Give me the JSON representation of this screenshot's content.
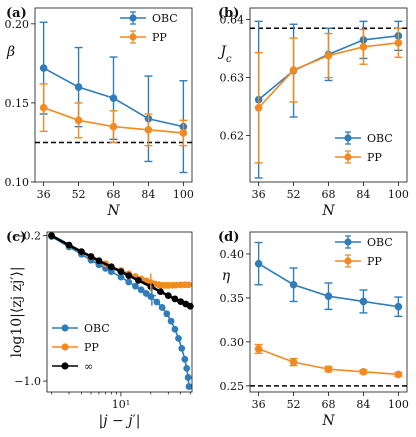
{
  "colors": {
    "obc": "#2f7dbb",
    "pp": "#f28a1f",
    "inf": "#000000",
    "ref": "#000000"
  },
  "chart_data": [
    {
      "panel": "(a)",
      "type": "line",
      "xlabel": "N",
      "ylabel": "β",
      "categories": [
        "36",
        "52",
        "68",
        "84",
        "100"
      ],
      "ylim": [
        0.1,
        0.21
      ],
      "yticks": [
        "0.10",
        "0.15",
        "0.20"
      ],
      "ytick_values": [
        0.1,
        0.15,
        0.2
      ],
      "reference_line": 0.125,
      "legend_position": "top-right",
      "series": [
        {
          "name": "OBC",
          "values": [
            0.172,
            0.16,
            0.153,
            0.14,
            0.135
          ],
          "err": [
            0.029,
            0.025,
            0.026,
            0.027,
            0.029
          ]
        },
        {
          "name": "PP",
          "values": [
            0.147,
            0.139,
            0.135,
            0.133,
            0.131
          ],
          "err": [
            0.015,
            0.011,
            0.01,
            0.01,
            0.008
          ]
        }
      ]
    },
    {
      "panel": "(b)",
      "type": "line",
      "xlabel": "N",
      "ylabel": "J_c",
      "categories": [
        "36",
        "52",
        "68",
        "84",
        "100"
      ],
      "ylim": [
        0.612,
        0.642
      ],
      "yticks": [
        "0.62",
        "0.63",
        "0.64"
      ],
      "ytick_values": [
        0.62,
        0.63,
        0.64
      ],
      "reference_line": 0.6385,
      "legend_position": "bottom-right",
      "series": [
        {
          "name": "OBC",
          "values": [
            0.6262,
            0.6312,
            0.634,
            0.6365,
            0.6372
          ],
          "err": [
            0.0135,
            0.008,
            0.0045,
            0.0032,
            0.0025
          ]
        },
        {
          "name": "PP",
          "values": [
            0.6248,
            0.6313,
            0.6338,
            0.6353,
            0.636
          ],
          "err": [
            0.0095,
            0.0055,
            0.0038,
            0.003,
            0.0025
          ]
        }
      ]
    },
    {
      "panel": "(c)",
      "type": "line",
      "xlabel": "|j − j′|",
      "ylabel": "log10|⟨zj zj′⟩|",
      "xscale": "log",
      "xlim": [
        1.8,
        52
      ],
      "xticks": [
        "10¹"
      ],
      "xtick_values": [
        10
      ],
      "ylim": [
        -1.06,
        -0.18
      ],
      "yticks": [
        "−0.2",
        "−1.0"
      ],
      "ytick_values": [
        -0.2,
        -1.0
      ],
      "legend_position": "bottom-left",
      "series": [
        {
          "name": "OBC",
          "x": [
            2,
            3,
            4,
            5,
            6,
            7,
            8,
            10,
            12,
            14,
            16,
            18,
            20,
            23,
            26,
            29,
            32,
            35,
            38,
            41,
            44,
            46,
            47.5,
            48.5
          ],
          "values": [
            -0.205,
            -0.262,
            -0.302,
            -0.335,
            -0.36,
            -0.38,
            -0.398,
            -0.428,
            -0.455,
            -0.478,
            -0.498,
            -0.518,
            -0.535,
            -0.565,
            -0.595,
            -0.63,
            -0.67,
            -0.715,
            -0.765,
            -0.82,
            -0.88,
            -0.93,
            -0.98,
            -1.03
          ]
        },
        {
          "name": "PP",
          "x": [
            2,
            3,
            4,
            5,
            6,
            7,
            8,
            10,
            12,
            14,
            16,
            18,
            20,
            22,
            24,
            26,
            28,
            30,
            33,
            36,
            40,
            44,
            48
          ],
          "values": [
            -0.2,
            -0.254,
            -0.29,
            -0.317,
            -0.338,
            -0.355,
            -0.37,
            -0.392,
            -0.41,
            -0.425,
            -0.438,
            -0.448,
            -0.458,
            -0.466,
            -0.47,
            -0.473,
            -0.474,
            -0.474,
            -0.473,
            -0.472,
            -0.471,
            -0.47,
            -0.47
          ]
        },
        {
          "name": "∞",
          "x": [
            2,
            3,
            4,
            5,
            6,
            8,
            10,
            12,
            15,
            20,
            25,
            30,
            35,
            40,
            45,
            50
          ],
          "values": [
            -0.2,
            -0.252,
            -0.288,
            -0.315,
            -0.338,
            -0.372,
            -0.398,
            -0.42,
            -0.446,
            -0.48,
            -0.508,
            -0.53,
            -0.548,
            -0.563,
            -0.576,
            -0.588
          ]
        }
      ]
    },
    {
      "panel": "(d)",
      "type": "line",
      "xlabel": "N",
      "ylabel": "η",
      "categories": [
        "36",
        "52",
        "68",
        "84",
        "100"
      ],
      "ylim": [
        0.243,
        0.425
      ],
      "yticks": [
        "0.25",
        "0.30",
        "0.35",
        "0.40"
      ],
      "ytick_values": [
        0.25,
        0.3,
        0.35,
        0.4
      ],
      "reference_line": 0.25,
      "legend_position": "top-right",
      "series": [
        {
          "name": "OBC",
          "values": [
            0.389,
            0.365,
            0.352,
            0.346,
            0.34
          ],
          "err": [
            0.024,
            0.019,
            0.015,
            0.013,
            0.011
          ]
        },
        {
          "name": "PP",
          "values": [
            0.292,
            0.277,
            0.269,
            0.266,
            0.263
          ],
          "err": [
            0.005,
            0.004,
            0.003,
            0.002,
            0.002
          ]
        }
      ]
    }
  ]
}
